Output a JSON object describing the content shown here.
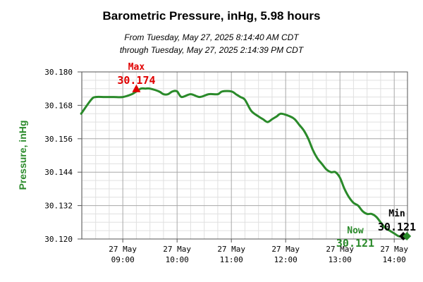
{
  "chart_data": {
    "type": "line",
    "title": "Barometric Pressure, inHg, 5.98 hours",
    "subtitle": [
      "From Tuesday, May 27, 2025 8:14:40 AM CDT",
      "through Tuesday, May 27, 2025 2:14:39 PM CDT"
    ],
    "ylabel": "Pressure, inHg",
    "xlabel": "",
    "ylim": [
      30.12,
      30.18
    ],
    "xlim": [
      "08:14:40",
      "14:14:39"
    ],
    "y_ticks": [
      "30.180",
      "30.168",
      "30.156",
      "30.144",
      "30.132",
      "30.120"
    ],
    "x_ticks": [
      {
        "date": "27 May",
        "time": "09:00"
      },
      {
        "date": "27 May",
        "time": "10:00"
      },
      {
        "date": "27 May",
        "time": "11:00"
      },
      {
        "date": "27 May",
        "time": "12:00"
      },
      {
        "date": "27 May",
        "time": "13:00"
      },
      {
        "date": "27 May",
        "time": "14:00"
      }
    ],
    "grid": true,
    "series": [
      {
        "color": "#2a8a2a",
        "x": [
          "08:14",
          "08:25",
          "08:30",
          "08:40",
          "08:50",
          "09:00",
          "09:10",
          "09:15",
          "09:20",
          "09:25",
          "09:30",
          "09:40",
          "09:45",
          "09:50",
          "09:55",
          "10:00",
          "10:05",
          "10:15",
          "10:25",
          "10:35",
          "10:45",
          "10:50",
          "11:00",
          "11:05",
          "11:10",
          "11:15",
          "11:22",
          "11:30",
          "11:35",
          "11:40",
          "11:45",
          "11:50",
          "11:55",
          "12:05",
          "12:10",
          "12:15",
          "12:20",
          "12:25",
          "12:30",
          "12:35",
          "12:40",
          "12:45",
          "12:50",
          "12:55",
          "13:00",
          "13:05",
          "13:10",
          "13:15",
          "13:20",
          "13:25",
          "13:30",
          "13:35",
          "13:40",
          "13:45",
          "13:50",
          "13:55",
          "14:00",
          "14:05",
          "14:10",
          "14:14"
        ],
        "values": [
          30.165,
          30.17,
          30.171,
          30.171,
          30.171,
          30.171,
          30.172,
          30.173,
          30.174,
          30.174,
          30.174,
          30.173,
          30.172,
          30.172,
          30.173,
          30.173,
          30.171,
          30.172,
          30.171,
          30.172,
          30.172,
          30.173,
          30.173,
          30.172,
          30.171,
          30.17,
          30.166,
          30.164,
          30.163,
          30.162,
          30.163,
          30.164,
          30.165,
          30.164,
          30.163,
          30.161,
          30.159,
          30.156,
          30.152,
          30.149,
          30.147,
          30.145,
          30.144,
          30.144,
          30.142,
          30.138,
          30.135,
          30.133,
          30.132,
          30.13,
          30.129,
          30.129,
          30.128,
          30.126,
          30.124,
          30.123,
          30.122,
          30.121,
          30.121,
          30.121
        ]
      }
    ],
    "annotations": {
      "max": {
        "label": "Max",
        "value": "30.174",
        "x": "09:15",
        "y": 30.174,
        "color": "#e00000",
        "marker": "triangle"
      },
      "min": {
        "label": "Min",
        "value": "30.121",
        "x": "14:10",
        "y": 30.121,
        "color": "#000000",
        "marker": "diamond"
      },
      "now": {
        "label": "Now",
        "value": "30.121",
        "x": "14:14",
        "y": 30.121,
        "color": "#2a8a2a",
        "marker": "diamond"
      }
    }
  }
}
